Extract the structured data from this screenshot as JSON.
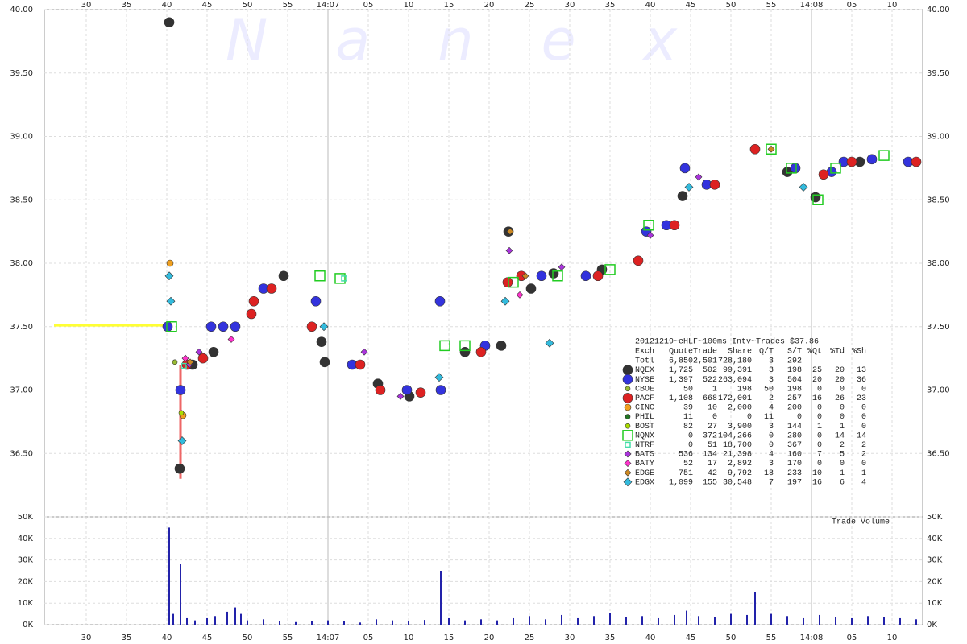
{
  "chart_data": {
    "type": "scatter",
    "watermark": "Nanex",
    "xlim": [
      24.8,
      133.8
    ],
    "xticks": [
      30,
      35,
      40,
      45,
      50,
      55,
      {
        "value": 60,
        "label": "14:07"
      },
      {
        "value": 65,
        "label": "05"
      },
      {
        "value": 70,
        "label": "10"
      },
      {
        "value": 75,
        "label": "15"
      },
      {
        "value": 80,
        "label": "20"
      },
      {
        "value": 85,
        "label": "25"
      },
      {
        "value": 90,
        "label": "30"
      },
      {
        "value": 95,
        "label": "35"
      },
      {
        "value": 100,
        "label": "40"
      },
      {
        "value": 105,
        "label": "45"
      },
      {
        "value": 110,
        "label": "50"
      },
      {
        "value": 115,
        "label": "55"
      },
      {
        "value": 120,
        "label": "14:08"
      },
      {
        "value": 125,
        "label": "05"
      },
      {
        "value": 130,
        "label": "10"
      }
    ],
    "ylim": [
      36,
      40
    ],
    "yticks": [
      {
        "value": 36.5,
        "label": "36.50"
      },
      {
        "value": 37,
        "label": "37.00"
      },
      {
        "value": 37.5,
        "label": "37.50"
      },
      {
        "value": 38,
        "label": "38.00"
      },
      {
        "value": 38.5,
        "label": "38.50"
      },
      {
        "value": 39,
        "label": "39.00"
      },
      {
        "value": 39.5,
        "label": "39.50"
      },
      {
        "value": 40,
        "label": "40.00"
      }
    ],
    "grid": true,
    "lines": [
      {
        "color": "#ffff33",
        "x": [
          26,
          39.6
        ],
        "values": [
          37.51,
          37.51
        ]
      },
      {
        "color": "#ee6666",
        "x": [
          41.7,
          41.7
        ],
        "values": [
          37.2,
          36.3
        ]
      }
    ],
    "legend_title": "20121219~eHLF~100ms Intv~Trades $37.86",
    "legend_columns": [
      "Exch",
      "Quote",
      "Trade",
      "Share",
      "Q/T",
      "S/T",
      "%Qt",
      "%Td",
      "%Sh"
    ],
    "total": {
      "label": "Totl",
      "stats": [
        "6,850",
        "2,501",
        "728,180",
        "3",
        "292"
      ]
    },
    "series": [
      {
        "name": "NQEX",
        "color": "#333333",
        "marker": "circle",
        "size": 6,
        "stats": [
          "1,725",
          "502",
          "99,391",
          "3",
          "198",
          "25",
          "20",
          "13"
        ],
        "x": [
          40.3,
          41.6,
          43.2,
          45.8,
          54.5,
          59.2,
          59.6,
          66.2,
          70.1,
          77.0,
          81.5,
          82.4,
          85.2,
          88.0,
          94.0,
          104.0,
          117.0,
          120.5,
          126.0
        ],
        "values": [
          39.9,
          36.38,
          37.2,
          37.3,
          37.9,
          37.38,
          37.22,
          37.05,
          36.95,
          37.3,
          37.35,
          38.25,
          37.8,
          37.92,
          37.95,
          38.53,
          38.72,
          38.52,
          38.8
        ]
      },
      {
        "name": "NYSE",
        "color": "#3333dd",
        "marker": "circle",
        "size": 6,
        "stats": [
          "1,397",
          "522",
          "263,094",
          "3",
          "504",
          "20",
          "20",
          "36"
        ],
        "x": [
          40.1,
          41.7,
          45.5,
          47.0,
          48.5,
          52.0,
          58.5,
          63.0,
          69.8,
          73.9,
          74.0,
          79.5,
          86.5,
          92.0,
          99.5,
          102.0,
          104.3,
          107.0,
          118.0,
          122.5,
          124.0,
          127.5,
          132.0
        ],
        "values": [
          37.5,
          37.0,
          37.5,
          37.5,
          37.5,
          37.8,
          37.7,
          37.2,
          37.0,
          37.7,
          37.0,
          37.35,
          37.9,
          37.9,
          38.25,
          38.3,
          38.75,
          38.62,
          38.75,
          38.72,
          38.8,
          38.82,
          38.8
        ]
      },
      {
        "name": "CBOE",
        "color": "#99bb33",
        "marker": "circle",
        "size": 3,
        "stats": [
          "50",
          "1",
          "198",
          "50",
          "198",
          "0",
          "0",
          "0"
        ],
        "x": [
          41.0
        ],
        "values": [
          37.22
        ]
      },
      {
        "name": "PACF",
        "color": "#dd2222",
        "marker": "circle",
        "size": 6,
        "stats": [
          "1,108",
          "668",
          "172,001",
          "2",
          "257",
          "16",
          "26",
          "23"
        ],
        "x": [
          42.5,
          44.5,
          50.5,
          50.8,
          53.0,
          58.0,
          64.0,
          66.5,
          71.5,
          79.0,
          82.3,
          84.0,
          93.5,
          98.5,
          103.0,
          108.0,
          113.0,
          121.5,
          125.0,
          133.0
        ],
        "values": [
          37.2,
          37.25,
          37.6,
          37.7,
          37.8,
          37.5,
          37.2,
          37.0,
          36.98,
          37.3,
          37.85,
          37.9,
          37.9,
          38.02,
          38.3,
          38.62,
          38.9,
          38.7,
          38.8,
          38.8
        ]
      },
      {
        "name": "CINC",
        "color": "#f0a020",
        "marker": "circle",
        "size": 4,
        "stats": [
          "39",
          "10",
          "2,000",
          "4",
          "200",
          "0",
          "0",
          "0"
        ],
        "x": [
          40.4,
          42.0
        ],
        "values": [
          38.0,
          36.8
        ]
      },
      {
        "name": "PHIL",
        "color": "#227722",
        "marker": "circle",
        "size": 3,
        "stats": [
          "11",
          "0",
          "0",
          "11",
          "0",
          "0",
          "0",
          "0"
        ],
        "x": [],
        "values": []
      },
      {
        "name": "BOST",
        "color": "#aadd00",
        "marker": "circle",
        "size": 3,
        "stats": [
          "82",
          "27",
          "3,900",
          "3",
          "144",
          "1",
          "1",
          "0"
        ],
        "x": [
          41.8
        ],
        "values": [
          36.82
        ]
      },
      {
        "name": "NQNX",
        "color": "#22cc22",
        "marker": "square",
        "size": 6,
        "stats": [
          "0",
          "372",
          "104,266",
          "0",
          "280",
          "0",
          "14",
          "14"
        ],
        "x": [
          40.6,
          59.0,
          61.5,
          74.5,
          77.0,
          83.0,
          88.5,
          95.0,
          99.8,
          115.0,
          117.5,
          120.8,
          123.0,
          129.0
        ],
        "values": [
          37.5,
          37.9,
          37.88,
          37.35,
          37.35,
          37.85,
          37.9,
          37.95,
          38.3,
          38.9,
          38.75,
          38.5,
          38.75,
          38.85
        ]
      },
      {
        "name": "NTRF",
        "color": "#44ddaa",
        "marker": "square",
        "size": 3,
        "stats": [
          "0",
          "51",
          "18,700",
          "0",
          "367",
          "0",
          "2",
          "2"
        ],
        "x": [
          42.1,
          62.0
        ],
        "values": [
          37.19,
          37.88
        ]
      },
      {
        "name": "BATS",
        "color": "#aa33dd",
        "marker": "diamond",
        "size": 4,
        "stats": [
          "536",
          "134",
          "21,398",
          "4",
          "160",
          "7",
          "5",
          "2"
        ],
        "x": [
          42.8,
          44.0,
          64.5,
          69.0,
          82.5,
          89.0,
          100.0,
          106.0
        ],
        "values": [
          37.2,
          37.3,
          37.3,
          36.95,
          38.1,
          37.97,
          38.22,
          38.68
        ]
      },
      {
        "name": "BATY",
        "color": "#ff33cc",
        "marker": "diamond",
        "size": 4,
        "stats": [
          "52",
          "17",
          "2,892",
          "3",
          "170",
          "0",
          "0",
          "0"
        ],
        "x": [
          42.3,
          48.0,
          83.8
        ],
        "values": [
          37.25,
          37.4,
          37.75
        ]
      },
      {
        "name": "EDGE",
        "color": "#cc8822",
        "marker": "diamond",
        "size": 4,
        "stats": [
          "751",
          "42",
          "9,792",
          "18",
          "233",
          "10",
          "1",
          "1"
        ],
        "x": [
          42.9,
          82.6,
          84.5,
          115.0
        ],
        "values": [
          37.22,
          38.25,
          37.9,
          38.9
        ]
      },
      {
        "name": "EDGX",
        "color": "#33bbdd",
        "marker": "diamond",
        "size": 5,
        "stats": [
          "1,099",
          "155",
          "30,548",
          "7",
          "197",
          "16",
          "6",
          "4"
        ],
        "x": [
          40.3,
          40.5,
          41.9,
          59.5,
          73.8,
          82.0,
          87.5,
          104.8,
          119.0
        ],
        "values": [
          37.9,
          37.7,
          36.6,
          37.5,
          37.1,
          37.7,
          37.37,
          38.6,
          38.6
        ]
      }
    ],
    "volume": {
      "label": "Trade Volume",
      "color": "#2222aa",
      "ylim": [
        0,
        50000
      ],
      "yticks": [
        {
          "value": 0,
          "label": "0K"
        },
        {
          "value": 10000,
          "label": "10K"
        },
        {
          "value": 20000,
          "label": "20K"
        },
        {
          "value": 30000,
          "label": "30K"
        },
        {
          "value": 40000,
          "label": "40K"
        },
        {
          "value": 50000,
          "label": "50K"
        }
      ],
      "x": [
        40.3,
        40.8,
        41.7,
        42.5,
        43.5,
        45,
        46,
        47.5,
        48.5,
        49.2,
        50,
        52,
        54,
        56,
        58,
        60,
        62,
        64,
        66,
        68,
        70,
        72,
        74,
        75,
        77,
        79,
        81,
        83,
        85,
        87,
        89,
        91,
        93,
        95,
        97,
        99,
        101,
        103,
        104.5,
        106,
        108,
        110,
        112,
        113,
        115,
        117,
        119,
        121,
        123,
        125,
        127,
        129,
        131,
        133
      ],
      "values": [
        45000,
        5000,
        28000,
        3000,
        2000,
        3000,
        4000,
        6000,
        8000,
        5000,
        2000,
        2500,
        1500,
        1200,
        1500,
        2000,
        1500,
        1000,
        2500,
        2000,
        1800,
        2200,
        25000,
        3000,
        2000,
        2500,
        2000,
        3000,
        4000,
        2500,
        4500,
        3000,
        4000,
        5500,
        3500,
        4000,
        3000,
        4500,
        6500,
        4000,
        3500,
        5000,
        4500,
        15000,
        5000,
        4000,
        3000,
        4500,
        3500,
        3000,
        4000,
        3500,
        3000,
        2500
      ]
    }
  }
}
